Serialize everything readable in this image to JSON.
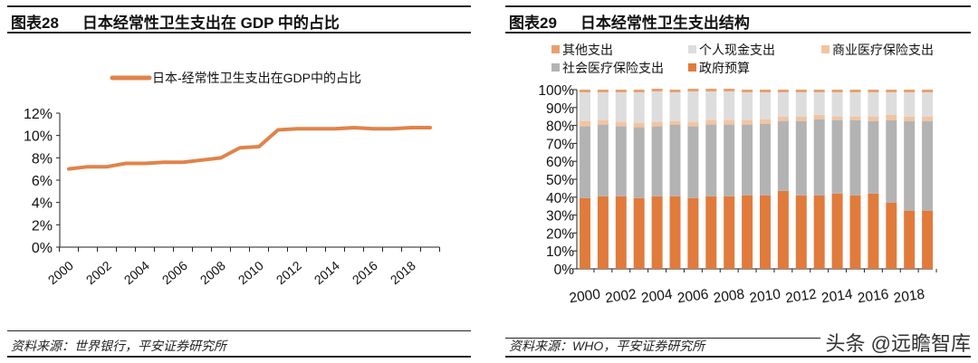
{
  "left": {
    "title_num": "图表28",
    "title": "日本经常性卫生支出在 GDP 中的占比",
    "source": "资料来源：世界银行，平安证券研究所"
  },
  "right": {
    "title_num": "图表29",
    "title": "日本经常性卫生支出结构",
    "source": "资料来源：WHO，平安证券研究所",
    "watermark": "头条 @远瞻智库"
  },
  "chart_data": [
    {
      "type": "line",
      "title": "日本经常性卫生支出在 GDP 中的占比",
      "legend_position": "top",
      "ylim": [
        0,
        12
      ],
      "yticks": [
        "0%",
        "2%",
        "4%",
        "6%",
        "8%",
        "10%",
        "12%"
      ],
      "xticklabels": [
        "2000",
        "2002",
        "2004",
        "2006",
        "2008",
        "2010",
        "2012",
        "2014",
        "2016",
        "2018"
      ],
      "x": [
        2000,
        2001,
        2002,
        2003,
        2004,
        2005,
        2006,
        2007,
        2008,
        2009,
        2010,
        2011,
        2012,
        2013,
        2014,
        2015,
        2016,
        2017,
        2018,
        2019
      ],
      "series": [
        {
          "name": "日本-经常性卫生支出在GDP中的占比",
          "color": "#E0834A",
          "values": [
            7.0,
            7.2,
            7.2,
            7.5,
            7.5,
            7.6,
            7.6,
            7.8,
            8.0,
            8.9,
            9.0,
            10.5,
            10.6,
            10.6,
            10.6,
            10.7,
            10.6,
            10.6,
            10.7,
            10.7
          ]
        }
      ]
    },
    {
      "type": "bar",
      "stacked": true,
      "title": "日本经常性卫生支出结构",
      "legend_position": "top",
      "ylim": [
        0,
        100
      ],
      "yticks": [
        "0%",
        "10%",
        "20%",
        "30%",
        "40%",
        "50%",
        "60%",
        "70%",
        "80%",
        "90%",
        "100%"
      ],
      "xticklabels": [
        "2000",
        "2002",
        "2004",
        "2006",
        "2008",
        "2010",
        "2012",
        "2014",
        "2016",
        "2018"
      ],
      "categories": [
        2000,
        2001,
        2002,
        2003,
        2004,
        2005,
        2006,
        2007,
        2008,
        2009,
        2010,
        2011,
        2012,
        2013,
        2014,
        2015,
        2016,
        2017,
        2018,
        2019
      ],
      "legend_order": [
        "其他支出",
        "个人现金支出",
        "商业医疗保险支出",
        "社会医疗保险支出",
        "政府预算"
      ],
      "series": [
        {
          "name": "政府预算",
          "color": "#E07B3C",
          "values": [
            39.5,
            40.5,
            40.5,
            39.5,
            40.5,
            40.5,
            39.5,
            40.5,
            40.5,
            41,
            41,
            43.5,
            41,
            41,
            42,
            41,
            42,
            37,
            32.5,
            32.5
          ]
        },
        {
          "name": "社会医疗保险支出",
          "color": "#B3B3B3",
          "values": [
            40,
            40,
            39,
            39.5,
            39,
            40,
            40,
            40,
            40,
            39.5,
            40,
            39,
            41.5,
            42.5,
            41,
            42,
            40.5,
            46,
            50,
            50
          ]
        },
        {
          "name": "商业医疗保险支出",
          "color": "#F2C4A0",
          "values": [
            3,
            2.5,
            2.5,
            2.5,
            2.5,
            2,
            2.5,
            2.5,
            2.5,
            2.5,
            2.5,
            2.5,
            2.5,
            2.5,
            2,
            2,
            2.5,
            3,
            2.5,
            2.5
          ]
        },
        {
          "name": "个人现金支出",
          "color": "#DDDDDD",
          "values": [
            16,
            15.5,
            16.5,
            17,
            17,
            16,
            17,
            16,
            16,
            15.5,
            15,
            13.5,
            13.5,
            12.5,
            13.5,
            13.5,
            13.5,
            12.5,
            13.5,
            13.5
          ]
        },
        {
          "name": "其他支出",
          "color": "#E8A070",
          "values": [
            1.5,
            1.5,
            1.5,
            1.5,
            1.5,
            1.5,
            1.5,
            1.5,
            1.5,
            1.5,
            1.5,
            1.5,
            1.5,
            1.5,
            1.5,
            1.5,
            1.5,
            1.5,
            1.5,
            1.5
          ]
        }
      ]
    }
  ]
}
